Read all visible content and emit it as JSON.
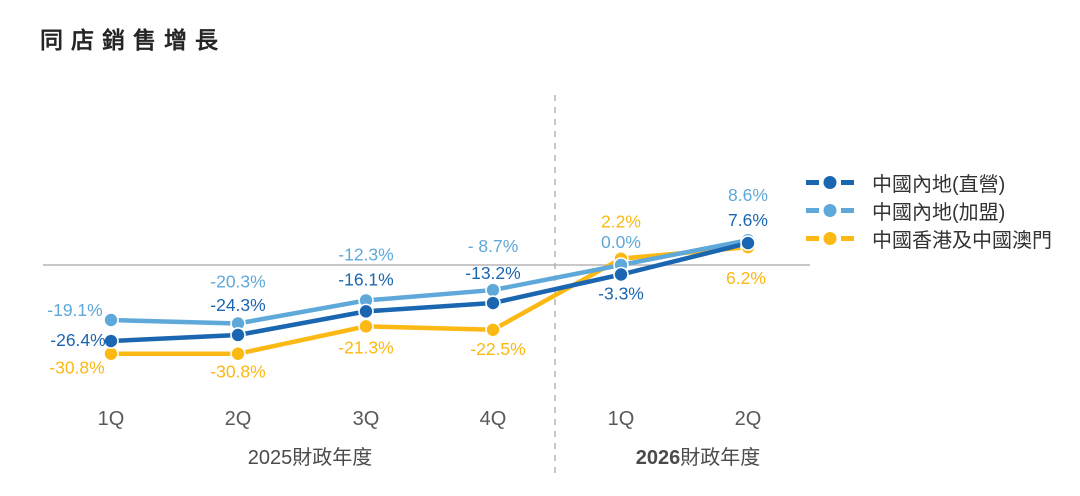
{
  "title": "同店銷售增長",
  "chart_data": {
    "type": "line",
    "categories": [
      "1Q",
      "2Q",
      "3Q",
      "4Q",
      "1Q",
      "2Q"
    ],
    "fiscal_year_groups": [
      {
        "year": "2025",
        "suffix": "財政年度",
        "bold_year": false,
        "category_span": [
          0,
          3
        ]
      },
      {
        "year": "2026",
        "suffix": "財政年度",
        "bold_year": true,
        "category_span": [
          4,
          5
        ]
      }
    ],
    "unit": "%",
    "baseline": 0,
    "grid": "baseline-only",
    "legend_position": "right",
    "series": [
      {
        "name": "中國內地(直營)",
        "color": "#1b66b1",
        "values": [
          -26.4,
          -24.3,
          -16.1,
          -13.2,
          -3.3,
          7.6
        ],
        "labels": [
          "-26.4%",
          "-24.3%",
          "-16.1%",
          "-13.2%",
          "-3.3%",
          "7.6%"
        ]
      },
      {
        "name": "中國內地(加盟)",
        "color": "#5fa8da",
        "values": [
          -19.1,
          -20.3,
          -12.3,
          -8.7,
          0.0,
          8.6
        ],
        "labels": [
          "-19.1%",
          "-20.3%",
          "-12.3%",
          "- 8.7%",
          "0.0%",
          "8.6%"
        ]
      },
      {
        "name": "中國香港及中國澳門",
        "color": "#fcb813",
        "values": [
          -30.8,
          -30.8,
          -21.3,
          -22.5,
          2.2,
          6.2
        ],
        "labels": [
          "-30.8%",
          "-30.8%",
          "-21.3%",
          "-22.5%",
          "2.2%",
          "6.2%"
        ]
      }
    ],
    "axis_color": "#b5b5b5",
    "tick_label_color": "#58595b"
  }
}
